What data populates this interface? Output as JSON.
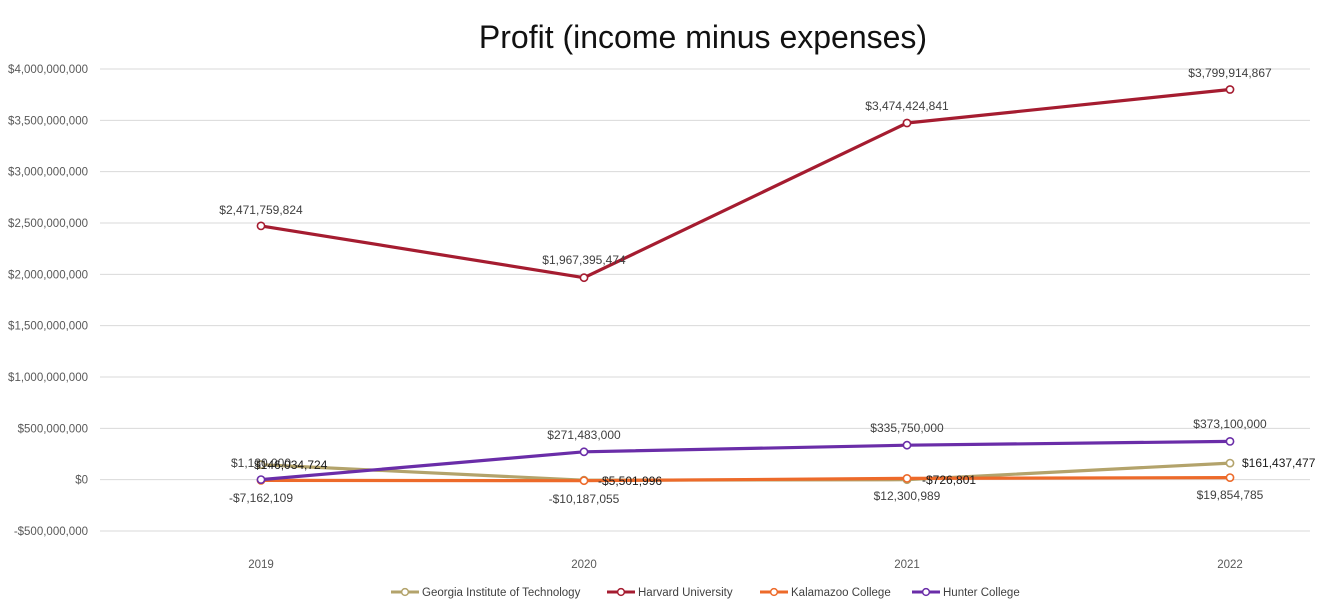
{
  "chart_data": {
    "type": "line",
    "title": "Profit (income minus expenses)",
    "xlabel": "",
    "ylabel": "",
    "categories": [
      "2019",
      "2020",
      "2021",
      "2022"
    ],
    "ylim": [
      -500000000,
      4000000000
    ],
    "yticks": [
      4000000000,
      3500000000,
      3000000000,
      2500000000,
      2000000000,
      1500000000,
      1000000000,
      500000000,
      0,
      -500000000
    ],
    "ytick_labels": [
      "$4,000,000,000",
      "$3,500,000,000",
      "$3,000,000,000",
      "$2,500,000,000",
      "$2,000,000,000",
      "$1,500,000,000",
      "$1,000,000,000",
      "$500,000,000",
      "$0",
      "-$500,000,000"
    ],
    "grid": true,
    "legend_position": "bottom",
    "series": [
      {
        "name": "Georgia Institute of Technology",
        "color": "#B3A36B",
        "values": [
          146034724,
          -5501996,
          -726801,
          161437477
        ],
        "labels": [
          "$146,034,724",
          "-$5,501,996",
          "-$726,801",
          "$161,437,477"
        ]
      },
      {
        "name": "Harvard University",
        "color": "#A51C30",
        "values": [
          2471759824,
          1967395474,
          3474424841,
          3799914867
        ],
        "labels": [
          "$2,471,759,824",
          "$1,967,395,474",
          "$3,474,424,841",
          "$3,799,914,867"
        ]
      },
      {
        "name": "Kalamazoo College",
        "color": "#ED6A2A",
        "values": [
          -7162109,
          -10187055,
          12300989,
          19854785
        ],
        "labels": [
          "-$7,162,109",
          "-$10,187,055",
          "$12,300,989",
          "$19,854,785"
        ]
      },
      {
        "name": "Hunter College",
        "color": "#6A2DA8",
        "values": [
          1130000,
          271483000,
          335750000,
          373100000
        ],
        "labels": [
          "$1,130,000",
          "$271,483,000",
          "$335,750,000",
          "$373,100,000"
        ]
      }
    ]
  }
}
